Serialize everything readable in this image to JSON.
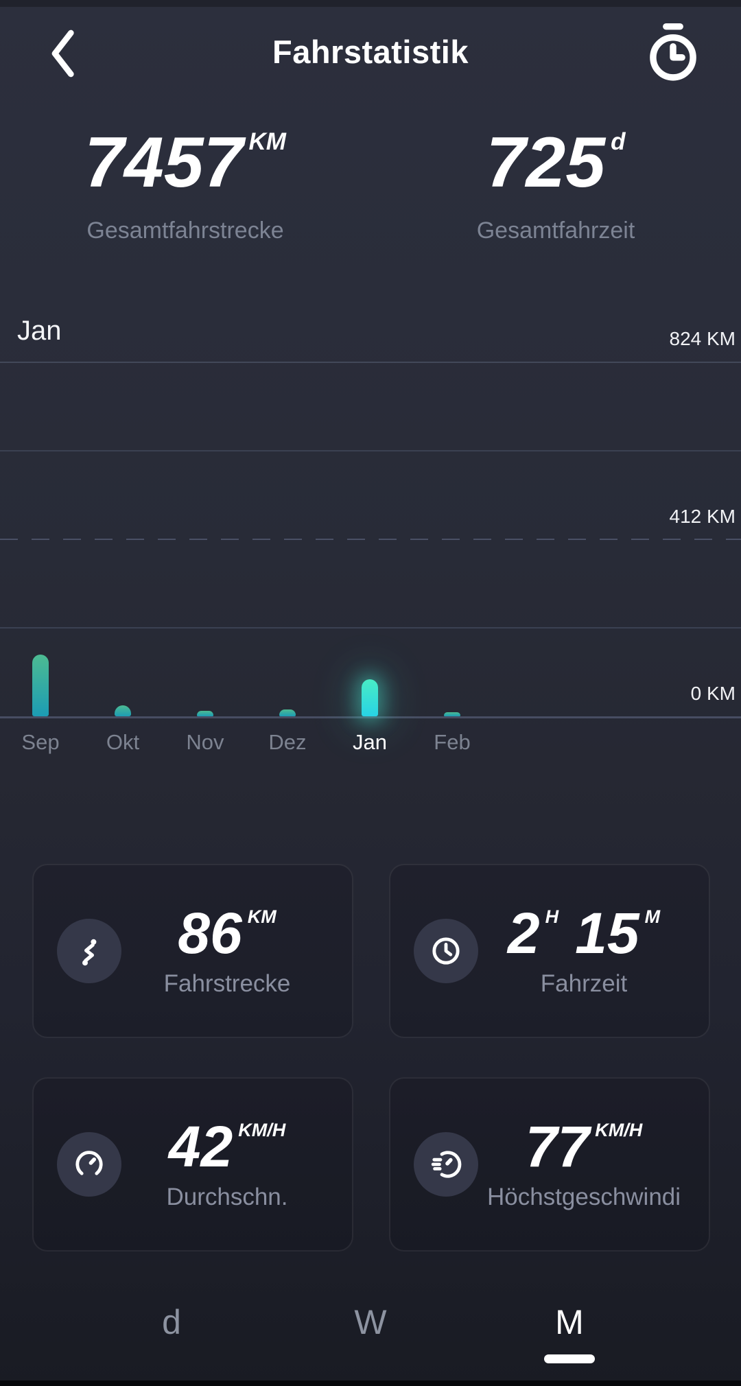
{
  "header": {
    "title": "Fahrstatistik"
  },
  "totals": [
    {
      "value": "7457",
      "unit": "KM",
      "label": "Gesamtfahrstrecke"
    },
    {
      "value": "725",
      "unit": "d",
      "label": "Gesamtfahrzeit"
    }
  ],
  "chart_data": {
    "type": "bar",
    "period_label": "Jan",
    "categories": [
      "Sep",
      "Okt",
      "Nov",
      "Dez",
      "Jan",
      "Feb"
    ],
    "values": [
      143,
      25,
      13,
      16,
      86,
      10
    ],
    "unit": "KM",
    "ylim": [
      0,
      824
    ],
    "yticks": [
      {
        "value": 824,
        "label": "824 KM"
      },
      {
        "value": 412,
        "label": "412 KM"
      },
      {
        "value": 0,
        "label": "0 KM"
      }
    ],
    "selected_index": 4,
    "grid": "horizontal-only",
    "legend": "none",
    "bar_gradient": [
      "#4dbb92",
      "#1c9cb4"
    ],
    "selected_bar_gradient": [
      "#49ecc5",
      "#28d3e4"
    ],
    "selected_glow": "rgba(73,236,213,0.42)"
  },
  "cards": [
    {
      "icon": "route-icon",
      "parts": [
        {
          "num": "86",
          "sup": "KM"
        }
      ],
      "label": "Fahrstrecke"
    },
    {
      "icon": "clock-icon",
      "parts": [
        {
          "num": "2",
          "sup": "H"
        },
        {
          "num": "15",
          "sup": "M"
        }
      ],
      "label": "Fahrzeit"
    },
    {
      "icon": "gauge-icon",
      "parts": [
        {
          "num": "42",
          "sup": "KM/H"
        }
      ],
      "label": "Durchschn."
    },
    {
      "icon": "speedometer-icon",
      "parts": [
        {
          "num": "77",
          "sup": "KM/H"
        }
      ],
      "label": "Höchstgeschwindi"
    }
  ],
  "tabs": [
    {
      "label": "d",
      "selected": false
    },
    {
      "label": "W",
      "selected": false
    },
    {
      "label": "M",
      "selected": true
    }
  ],
  "colors": {
    "accent_teal": "#2bb4ad",
    "accent_cyan": "#35e3d2",
    "bg_top": "#2c2f3d",
    "bg_bottom": "#191b23",
    "text_muted": "#8a90a0",
    "grid_line": "#3b4152"
  }
}
